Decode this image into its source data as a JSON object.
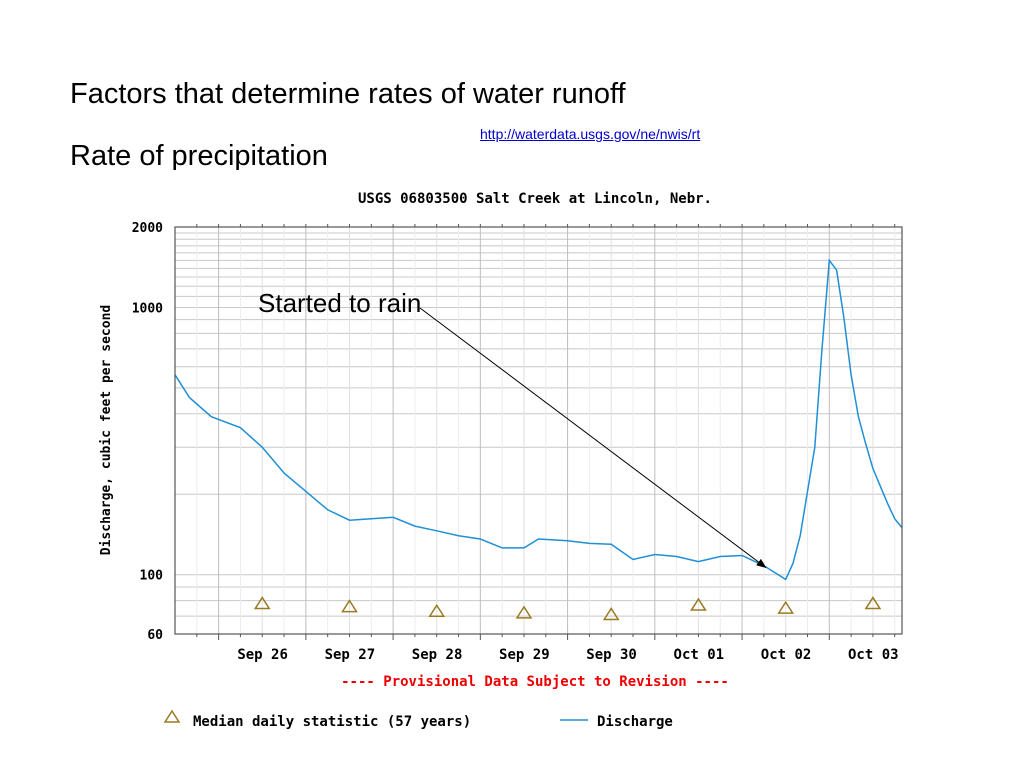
{
  "slide": {
    "title": "Factors that determine rates of water runoff",
    "subtitle": "Rate of precipitation",
    "link": "http://waterdata.usgs.gov/ne/nwis/rt"
  },
  "chart_data": {
    "type": "line",
    "title": "USGS 06803500 Salt Creek at Lincoln, Nebr.",
    "ylabel": "Discharge, cubic feet per second",
    "xlabel": "",
    "y_scale": "log",
    "ylim": [
      60,
      2000
    ],
    "y_ticks": [
      {
        "value": 60,
        "label": "60"
      },
      {
        "value": 100,
        "label": "100"
      },
      {
        "value": 1000,
        "label": "1000"
      },
      {
        "value": 2000,
        "label": "2000"
      }
    ],
    "x_range": [
      "2007-09-25T12:00",
      "2007-10-03T20:00"
    ],
    "x_ticks": [
      {
        "label": "Sep 26",
        "x": "2007-09-26T00:00"
      },
      {
        "label": "Sep 27",
        "x": "2007-09-27T00:00"
      },
      {
        "label": "Sep 28",
        "x": "2007-09-28T00:00"
      },
      {
        "label": "Sep 29",
        "x": "2007-09-29T00:00"
      },
      {
        "label": "Sep 30",
        "x": "2007-09-30T00:00"
      },
      {
        "label": "Oct 01",
        "x": "2007-10-01T00:00"
      },
      {
        "label": "Oct 02",
        "x": "2007-10-02T00:00"
      },
      {
        "label": "Oct 03",
        "x": "2007-10-03T00:00"
      }
    ],
    "grid": true,
    "series": [
      {
        "name": "Discharge",
        "color": "#1f8fd6",
        "points": [
          {
            "x": "2007-09-25T12:00",
            "y": 560
          },
          {
            "x": "2007-09-25T16:00",
            "y": 460
          },
          {
            "x": "2007-09-25T22:00",
            "y": 390
          },
          {
            "x": "2007-09-26T06:00",
            "y": 355
          },
          {
            "x": "2007-09-26T12:00",
            "y": 300
          },
          {
            "x": "2007-09-26T18:00",
            "y": 240
          },
          {
            "x": "2007-09-27T00:00",
            "y": 205
          },
          {
            "x": "2007-09-27T06:00",
            "y": 175
          },
          {
            "x": "2007-09-27T12:00",
            "y": 160
          },
          {
            "x": "2007-09-27T18:00",
            "y": 162
          },
          {
            "x": "2007-09-28T00:00",
            "y": 164
          },
          {
            "x": "2007-09-28T06:00",
            "y": 152
          },
          {
            "x": "2007-09-28T12:00",
            "y": 146
          },
          {
            "x": "2007-09-28T18:00",
            "y": 140
          },
          {
            "x": "2007-09-29T00:00",
            "y": 136
          },
          {
            "x": "2007-09-29T06:00",
            "y": 126
          },
          {
            "x": "2007-09-29T12:00",
            "y": 126
          },
          {
            "x": "2007-09-29T16:00",
            "y": 136
          },
          {
            "x": "2007-09-30T00:00",
            "y": 134
          },
          {
            "x": "2007-09-30T06:00",
            "y": 131
          },
          {
            "x": "2007-09-30T12:00",
            "y": 130
          },
          {
            "x": "2007-09-30T18:00",
            "y": 114
          },
          {
            "x": "2007-10-01T00:00",
            "y": 119
          },
          {
            "x": "2007-10-01T06:00",
            "y": 117
          },
          {
            "x": "2007-10-01T12:00",
            "y": 112
          },
          {
            "x": "2007-10-01T18:00",
            "y": 117
          },
          {
            "x": "2007-10-02T00:00",
            "y": 118
          },
          {
            "x": "2007-10-02T06:00",
            "y": 108
          },
          {
            "x": "2007-10-02T12:00",
            "y": 96
          },
          {
            "x": "2007-10-02T14:00",
            "y": 110
          },
          {
            "x": "2007-10-02T16:00",
            "y": 140
          },
          {
            "x": "2007-10-02T20:00",
            "y": 300
          },
          {
            "x": "2007-10-02T22:00",
            "y": 700
          },
          {
            "x": "2007-10-03T00:00",
            "y": 1500
          },
          {
            "x": "2007-10-03T02:00",
            "y": 1380
          },
          {
            "x": "2007-10-03T04:00",
            "y": 920
          },
          {
            "x": "2007-10-03T06:00",
            "y": 560
          },
          {
            "x": "2007-10-03T08:00",
            "y": 390
          },
          {
            "x": "2007-10-03T10:00",
            "y": 310
          },
          {
            "x": "2007-10-03T12:00",
            "y": 250
          },
          {
            "x": "2007-10-03T14:00",
            "y": 215
          },
          {
            "x": "2007-10-03T16:00",
            "y": 185
          },
          {
            "x": "2007-10-03T18:00",
            "y": 162
          },
          {
            "x": "2007-10-03T20:00",
            "y": 150
          }
        ]
      },
      {
        "name": "Median daily statistic (57 years)",
        "marker": "triangle",
        "color": "#9a7b22",
        "points": [
          {
            "x": "2007-09-26T12:00",
            "y": 78
          },
          {
            "x": "2007-09-27T12:00",
            "y": 76
          },
          {
            "x": "2007-09-28T12:00",
            "y": 73
          },
          {
            "x": "2007-09-29T12:00",
            "y": 72
          },
          {
            "x": "2007-09-30T12:00",
            "y": 71
          },
          {
            "x": "2007-10-01T12:00",
            "y": 77
          },
          {
            "x": "2007-10-02T12:00",
            "y": 75
          },
          {
            "x": "2007-10-03T12:00",
            "y": 78
          }
        ]
      }
    ],
    "annotations": [
      {
        "text": "Started to rain",
        "x": "2007-10-02T12:00",
        "y": 96
      }
    ],
    "notice": "---- Provisional Data Subject to Revision ----",
    "legend": [
      {
        "label": "Median daily statistic (57 years)",
        "symbol": "triangle"
      },
      {
        "label": "Discharge",
        "symbol": "line"
      }
    ],
    "legend_position": "bottom"
  }
}
